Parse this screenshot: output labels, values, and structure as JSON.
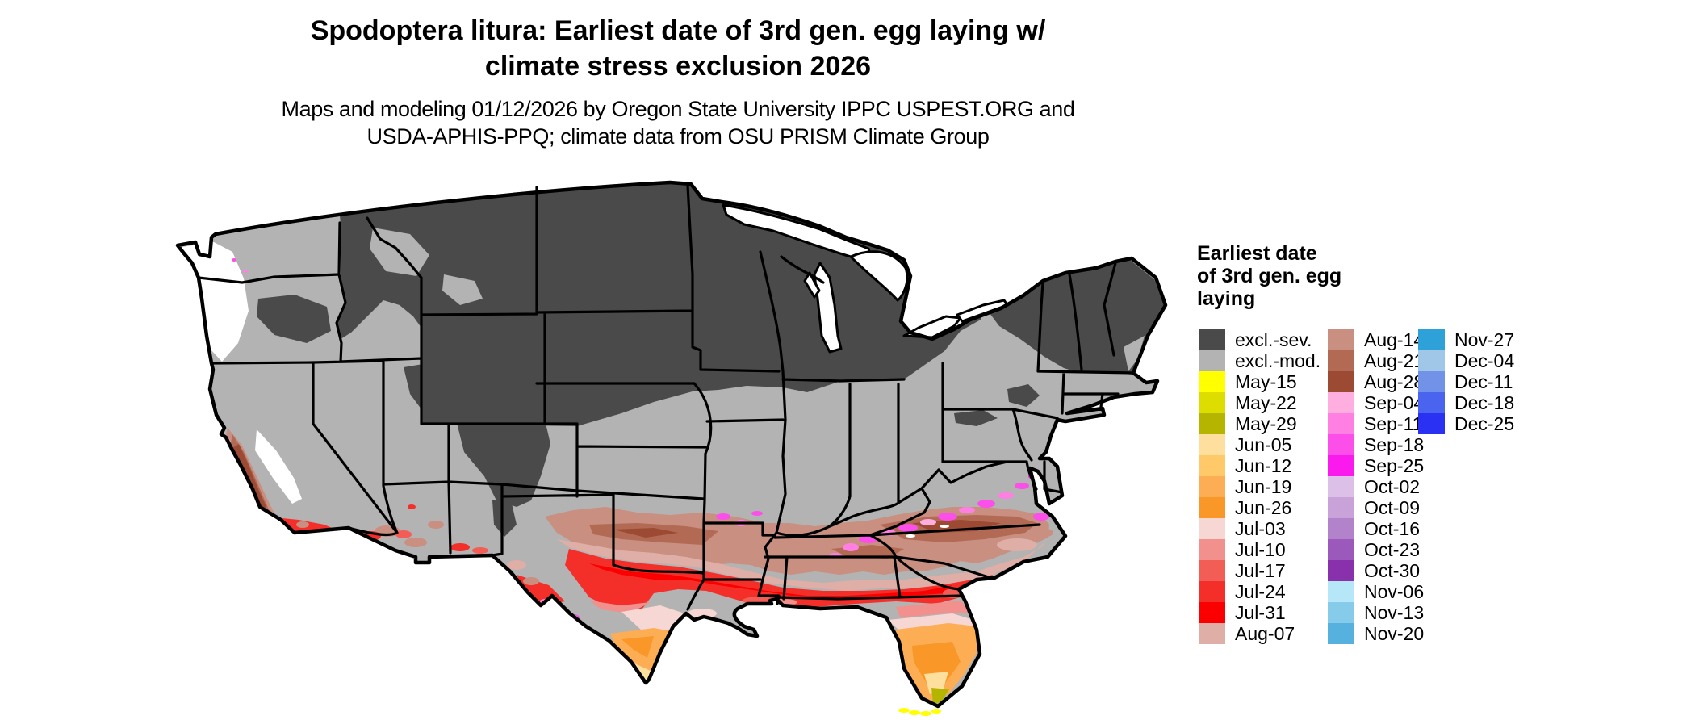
{
  "title": {
    "line1": "Spodoptera litura: Earliest date of 3rd gen. egg laying w/",
    "line2": "climate stress exclusion 2026"
  },
  "subtitle": {
    "line1": "Maps and modeling 01/12/2026 by Oregon State University IPPC USPEST.ORG and",
    "line2": "USDA-APHIS-PPQ; climate data from OSU PRISM Climate Group"
  },
  "legend": {
    "title_line1": "Earliest date",
    "title_line2": "of 3rd gen. egg",
    "title_line3": "laying",
    "columns": [
      [
        {
          "label": "excl.-sev.",
          "color": "#4a4a4a"
        },
        {
          "label": "excl.-mod.",
          "color": "#b3b3b3"
        },
        {
          "label": "May-15",
          "color": "#ffff00"
        },
        {
          "label": "May-22",
          "color": "#dddd00"
        },
        {
          "label": "May-29",
          "color": "#b5b500"
        },
        {
          "label": "Jun-05",
          "color": "#ffdf9e"
        },
        {
          "label": "Jun-12",
          "color": "#ffc969"
        },
        {
          "label": "Jun-19",
          "color": "#fdae54"
        },
        {
          "label": "Jun-26",
          "color": "#f99728"
        },
        {
          "label": "Jul-03",
          "color": "#f6d7d3"
        },
        {
          "label": "Jul-10",
          "color": "#f1908c"
        },
        {
          "label": "Jul-17",
          "color": "#f25d55"
        },
        {
          "label": "Jul-24",
          "color": "#f42e28"
        },
        {
          "label": "Jul-31",
          "color": "#fb0000"
        },
        {
          "label": "Aug-07",
          "color": "#dfaea6"
        }
      ],
      [
        {
          "label": "Aug-14",
          "color": "#c98f80"
        },
        {
          "label": "Aug-21",
          "color": "#b26a55"
        },
        {
          "label": "Aug-28",
          "color": "#9c4a33"
        },
        {
          "label": "Sep-04",
          "color": "#ffafdf"
        },
        {
          "label": "Sep-11",
          "color": "#ff7fe3"
        },
        {
          "label": "Sep-18",
          "color": "#fc4fe9"
        },
        {
          "label": "Sep-25",
          "color": "#fb1aee"
        },
        {
          "label": "Oct-02",
          "color": "#dcc0e8"
        },
        {
          "label": "Oct-09",
          "color": "#c9a2d9"
        },
        {
          "label": "Oct-16",
          "color": "#b282cb"
        },
        {
          "label": "Oct-23",
          "color": "#9b59bb"
        },
        {
          "label": "Oct-30",
          "color": "#8930ac"
        },
        {
          "label": "Nov-06",
          "color": "#b5e7f8"
        },
        {
          "label": "Nov-13",
          "color": "#86ccea"
        },
        {
          "label": "Nov-20",
          "color": "#57b1de"
        }
      ],
      [
        {
          "label": "Nov-27",
          "color": "#2ea2d8"
        },
        {
          "label": "Dec-04",
          "color": "#a0c7e7"
        },
        {
          "label": "Dec-11",
          "color": "#7292e7"
        },
        {
          "label": "Dec-18",
          "color": "#4b64ef"
        },
        {
          "label": "Dec-25",
          "color": "#2a31f2"
        }
      ]
    ]
  }
}
